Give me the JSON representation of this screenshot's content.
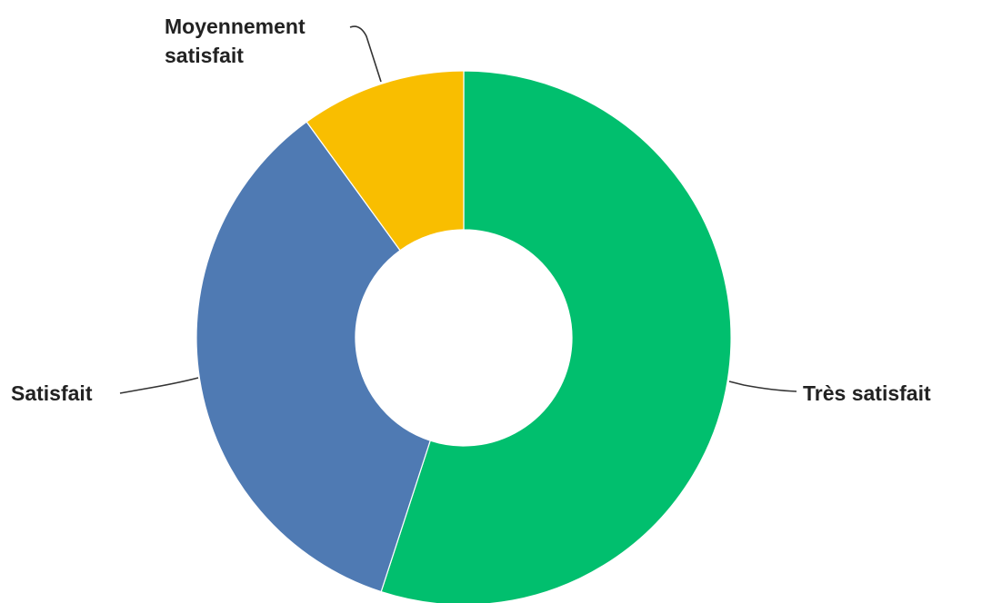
{
  "chart_data": {
    "type": "pie",
    "variant": "donut",
    "title": "",
    "start_angle_deg": 0,
    "direction": "clockwise",
    "slices": [
      {
        "label": "Très satisfait",
        "value": 55,
        "color": "#01bf6e"
      },
      {
        "label": "Satisfait",
        "value": 35,
        "color": "#4f7ab3"
      },
      {
        "label": "Moyennement satisfait",
        "label_lines": [
          "Moyennement",
          "satisfait"
        ],
        "value": 10,
        "color": "#f9be00"
      }
    ],
    "legend": "none",
    "data_labels": "category names with leader lines"
  }
}
